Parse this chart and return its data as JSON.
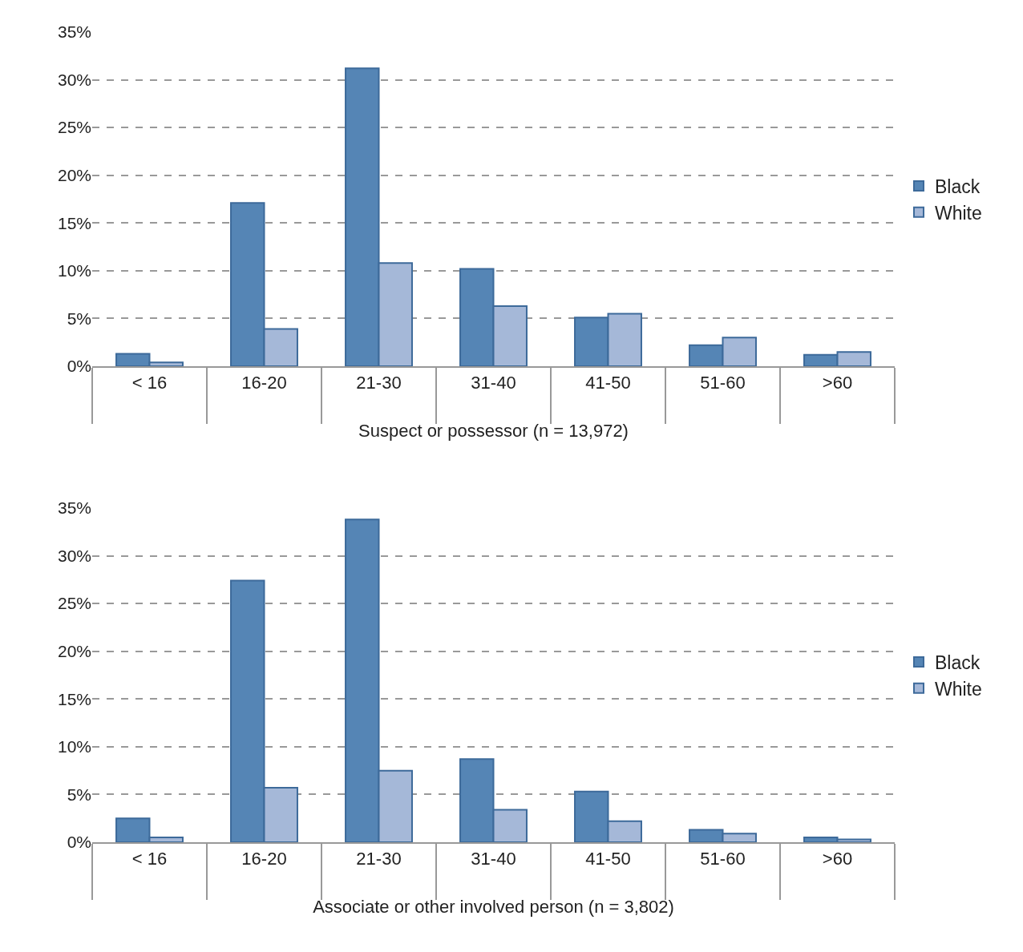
{
  "chart_data": [
    {
      "type": "bar",
      "xlabel": "Suspect or possessor (n = 13,972)",
      "categories": [
        "< 16",
        "16-20",
        "21-30",
        "31-40",
        "41-50",
        "51-60",
        ">60"
      ],
      "series": [
        {
          "name": "Black",
          "color": "#5585b5",
          "values": [
            1.3,
            17.1,
            31.2,
            10.2,
            5.1,
            2.2,
            1.2
          ]
        },
        {
          "name": "White",
          "color": "#a5b8d8",
          "values": [
            0.4,
            3.9,
            10.8,
            6.3,
            5.5,
            3.0,
            1.5
          ]
        }
      ],
      "ylim": [
        0,
        35
      ],
      "yticks": [
        {
          "value": 0,
          "label": "0%"
        },
        {
          "value": 5,
          "label": "5%"
        },
        {
          "value": 10,
          "label": "10%"
        },
        {
          "value": 15,
          "label": "15%"
        },
        {
          "value": 20,
          "label": "20%"
        },
        {
          "value": 25,
          "label": "25%"
        },
        {
          "value": 30,
          "label": "30%"
        },
        {
          "value": 35,
          "label": "35%"
        }
      ],
      "grid": "y",
      "legend": "right"
    },
    {
      "type": "bar",
      "xlabel": "Associate or other involved person (n = 3,802)",
      "categories": [
        "< 16",
        "16-20",
        "21-30",
        "31-40",
        "41-50",
        "51-60",
        ">60"
      ],
      "series": [
        {
          "name": "Black",
          "color": "#5585b5",
          "values": [
            2.5,
            27.4,
            33.8,
            8.7,
            5.3,
            1.3,
            0.5
          ]
        },
        {
          "name": "White",
          "color": "#a5b8d8",
          "values": [
            0.5,
            5.7,
            7.5,
            3.4,
            2.2,
            0.9,
            0.3
          ]
        }
      ],
      "ylim": [
        0,
        35
      ],
      "yticks": [
        {
          "value": 0,
          "label": "0%"
        },
        {
          "value": 5,
          "label": "5%"
        },
        {
          "value": 10,
          "label": "10%"
        },
        {
          "value": 15,
          "label": "15%"
        },
        {
          "value": 20,
          "label": "20%"
        },
        {
          "value": 25,
          "label": "25%"
        },
        {
          "value": 30,
          "label": "30%"
        },
        {
          "value": 35,
          "label": "35%"
        }
      ],
      "grid": "y",
      "legend": "right"
    }
  ]
}
